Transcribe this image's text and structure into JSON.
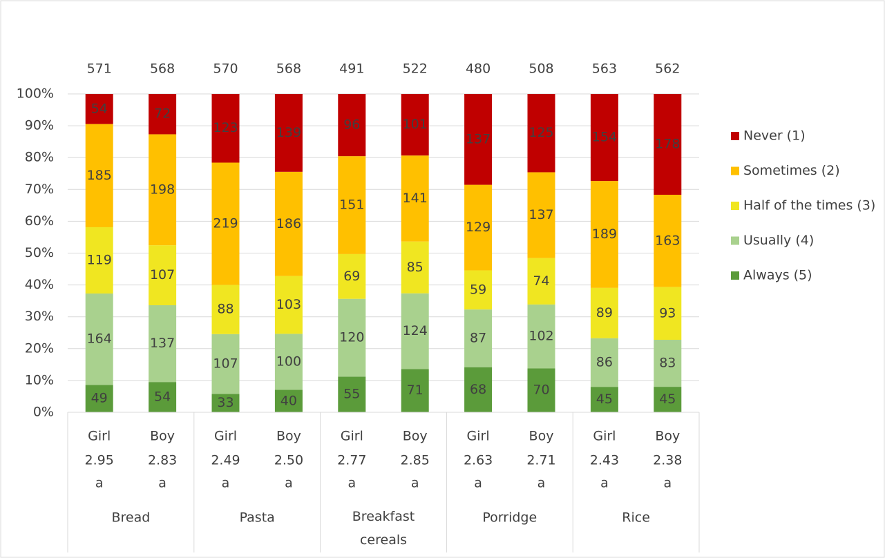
{
  "chart_data": {
    "type": "bar",
    "stacking": "percent",
    "categories": [
      "Girl",
      "Boy",
      "Girl",
      "Boy",
      "Girl",
      "Boy",
      "Girl",
      "Boy",
      "Girl",
      "Boy"
    ],
    "means": [
      2.95,
      2.83,
      2.49,
      {
        "value": 2.5,
        "label": "2.50"
      },
      2.77,
      2.85,
      2.63,
      2.71,
      2.43,
      2.38
    ],
    "significance": [
      "a",
      "a",
      "a",
      "a",
      "a",
      "a",
      "a",
      "a",
      "a",
      "a"
    ],
    "groups": [
      "Bread",
      "Pasta",
      "Breakfast cereals",
      "Porridge",
      "Rice"
    ],
    "totals": [
      571,
      568,
      570,
      568,
      491,
      522,
      480,
      508,
      563,
      562
    ],
    "series": [
      {
        "name": "Never (1)",
        "color": "#c00000",
        "values": [
          54,
          72,
          123,
          139,
          96,
          101,
          137,
          125,
          154,
          178
        ]
      },
      {
        "name": "Sometimes (2)",
        "color": "#ffc000",
        "values": [
          185,
          198,
          219,
          186,
          151,
          141,
          129,
          137,
          189,
          163
        ]
      },
      {
        "name": "Half of the times (3)",
        "color": "#f0e621",
        "values": [
          119,
          107,
          88,
          103,
          69,
          85,
          59,
          74,
          89,
          93
        ]
      },
      {
        "name": "Usually (4)",
        "color": "#a9d18e",
        "values": [
          164,
          137,
          107,
          100,
          120,
          124,
          87,
          102,
          86,
          83
        ]
      },
      {
        "name": "Always (5)",
        "color": "#5b9b3a",
        "values": [
          49,
          54,
          33,
          40,
          55,
          71,
          68,
          70,
          45,
          45
        ]
      }
    ],
    "ylim": [
      0,
      100
    ],
    "yticks": [
      {
        "value": 0,
        "label": "0%"
      },
      {
        "value": 10,
        "label": "10%"
      },
      {
        "value": 20,
        "label": "20%"
      },
      {
        "value": 30,
        "label": "30%"
      },
      {
        "value": 40,
        "label": "40%"
      },
      {
        "value": 50,
        "label": "50%"
      },
      {
        "value": 60,
        "label": "60%"
      },
      {
        "value": 70,
        "label": "70%"
      },
      {
        "value": 80,
        "label": "80%"
      },
      {
        "value": 90,
        "label": "90%"
      },
      {
        "value": 100,
        "label": "100%"
      }
    ],
    "grid": true,
    "legend": "right"
  }
}
